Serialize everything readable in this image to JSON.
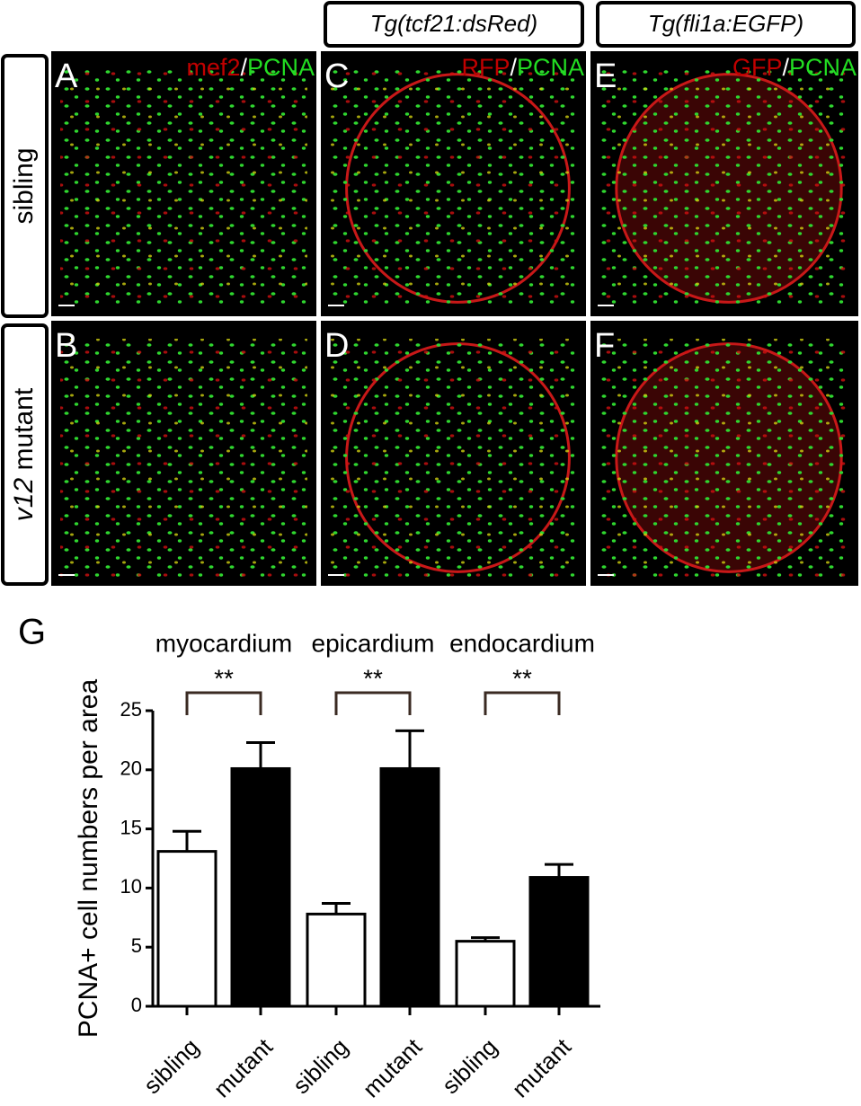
{
  "column_headers": [
    "Tg(tcf21:dsRed)",
    "Tg(fli1a:EGFP)"
  ],
  "row_labels": [
    [
      {
        "text": "sibling",
        "italic": false
      }
    ],
    [
      {
        "text": "v12",
        "italic": true
      },
      {
        "text": " mutant",
        "italic": false
      }
    ]
  ],
  "panels": [
    {
      "label": "A",
      "stain": [
        {
          "text": "mef2",
          "color": "#c00000"
        },
        {
          "text": "/",
          "color": "#ffffff"
        },
        {
          "text": "PCNA",
          "color": "#22dd22"
        }
      ]
    },
    {
      "label": "C",
      "stain": [
        {
          "text": "RFP",
          "color": "#c00000"
        },
        {
          "text": "/",
          "color": "#ffffff"
        },
        {
          "text": "PCNA",
          "color": "#22dd22"
        }
      ]
    },
    {
      "label": "E",
      "stain": [
        {
          "text": "GFP",
          "color": "#c00000"
        },
        {
          "text": "/",
          "color": "#ffffff"
        },
        {
          "text": "PCNA",
          "color": "#22dd22"
        }
      ]
    },
    {
      "label": "B",
      "stain": []
    },
    {
      "label": "D",
      "stain": []
    },
    {
      "label": "F",
      "stain": []
    }
  ],
  "chart_data": {
    "type": "bar",
    "panel_label": "G",
    "y_label": "PCNA+ cell numbers per area",
    "groups": [
      {
        "name": "myocardium",
        "significance": "**"
      },
      {
        "name": "epicardium",
        "significance": "**"
      },
      {
        "name": "endocardium",
        "significance": "**"
      }
    ],
    "categories": [
      "sibling",
      "mutant",
      "sibling",
      "mutant",
      "sibling",
      "mutant"
    ],
    "values": [
      13.1,
      20.1,
      7.8,
      20.1,
      5.5,
      10.9
    ],
    "errors": [
      1.7,
      2.2,
      0.9,
      3.2,
      0.3,
      1.1
    ],
    "colors": [
      "#ffffff",
      "#000000",
      "#ffffff",
      "#000000",
      "#ffffff",
      "#000000"
    ],
    "ylim": [
      0,
      25
    ],
    "yticks": [
      0,
      5,
      10,
      15,
      20,
      25
    ]
  }
}
